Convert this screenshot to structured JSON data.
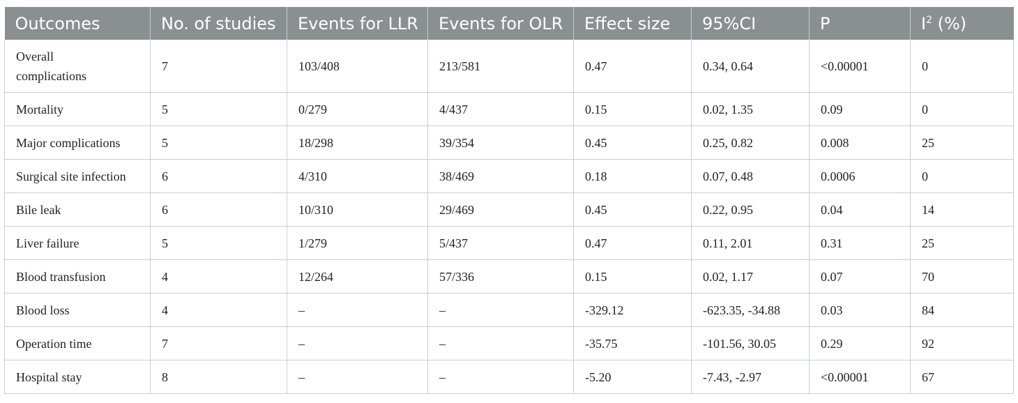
{
  "table": {
    "headers": [
      "Outcomes",
      "No. of studies",
      "Events for LLR",
      "Events for OLR",
      "Effect size",
      "95%CI",
      "P"
    ],
    "last_header": {
      "base": "I",
      "sup": "2",
      "suffix": " (%)"
    },
    "rows": [
      [
        "Overall complications",
        "7",
        "103/408",
        "213/581",
        "0.47",
        "0.34, 0.64",
        "<0.00001",
        "0"
      ],
      [
        "Mortality",
        "5",
        "0/279",
        "4/437",
        "0.15",
        "0.02, 1.35",
        "0.09",
        "0"
      ],
      [
        "Major complications",
        "5",
        "18/298",
        "39/354",
        "0.45",
        "0.25, 0.82",
        "0.008",
        "25"
      ],
      [
        "Surgical site infection",
        "6",
        "4/310",
        "38/469",
        "0.18",
        "0.07, 0.48",
        "0.0006",
        "0"
      ],
      [
        "Bile leak",
        "6",
        "10/310",
        "29/469",
        "0.45",
        "0.22, 0.95",
        "0.04",
        "14"
      ],
      [
        "Liver failure",
        "5",
        "1/279",
        "5/437",
        "0.47",
        "0.11, 2.01",
        "0.31",
        "25"
      ],
      [
        "Blood transfusion",
        "4",
        "12/264",
        "57/336",
        "0.15",
        "0.02, 1.17",
        "0.07",
        "70"
      ],
      [
        "Blood loss",
        "4",
        "–",
        "–",
        "-329.12",
        "-623.35, -34.88",
        "0.03",
        "84"
      ],
      [
        "Operation time",
        "7",
        "–",
        "–",
        "-35.75",
        "-101.56, 30.05",
        "0.29",
        "92"
      ],
      [
        "Hospital stay",
        "8",
        "–",
        "–",
        "-5.20",
        "-7.43, -2.97",
        "<0.00001",
        "67"
      ]
    ]
  }
}
